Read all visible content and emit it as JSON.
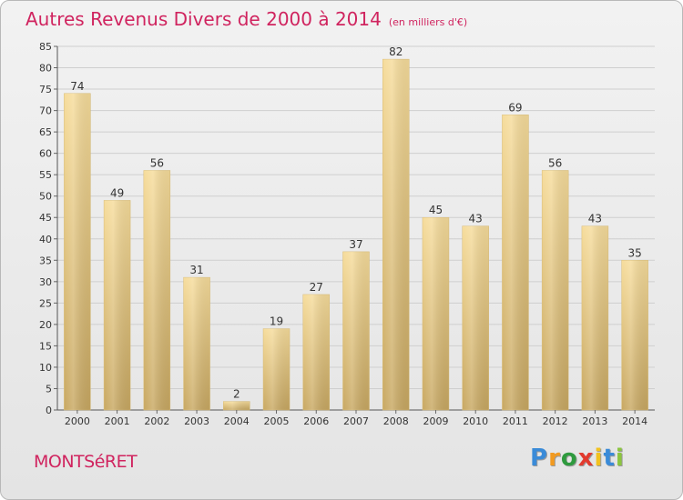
{
  "chart_data": {
    "type": "bar",
    "title": "Autres Revenus Divers de 2000 à 2014",
    "subtitle": "(en milliers d'€)",
    "categories": [
      "2000",
      "2001",
      "2002",
      "2003",
      "2004",
      "2005",
      "2006",
      "2007",
      "2008",
      "2009",
      "2010",
      "2011",
      "2012",
      "2013",
      "2014"
    ],
    "values": [
      74,
      49,
      56,
      31,
      2,
      19,
      27,
      37,
      82,
      45,
      43,
      69,
      56,
      43,
      35
    ],
    "ylim": [
      0,
      85
    ],
    "yticks": [
      0,
      5,
      10,
      15,
      20,
      25,
      30,
      35,
      40,
      45,
      50,
      55,
      60,
      65,
      70,
      75,
      80,
      85
    ],
    "xlabel": "",
    "ylabel": "",
    "grid": true,
    "colors": {
      "bar_top": "#f6dc9b",
      "bar_bottom": "#c8a862",
      "title": "#d0245f"
    }
  },
  "footer": {
    "commune": "MONTSéRET",
    "logo": [
      "P",
      "r",
      "o",
      "x",
      "i",
      "t",
      "i"
    ],
    "logo_colors": [
      "#3a8bd8",
      "#f29a1f",
      "#2e9a3e",
      "#e23a2e",
      "#f2c21f",
      "#3a8bd8",
      "#8bc53f"
    ]
  }
}
